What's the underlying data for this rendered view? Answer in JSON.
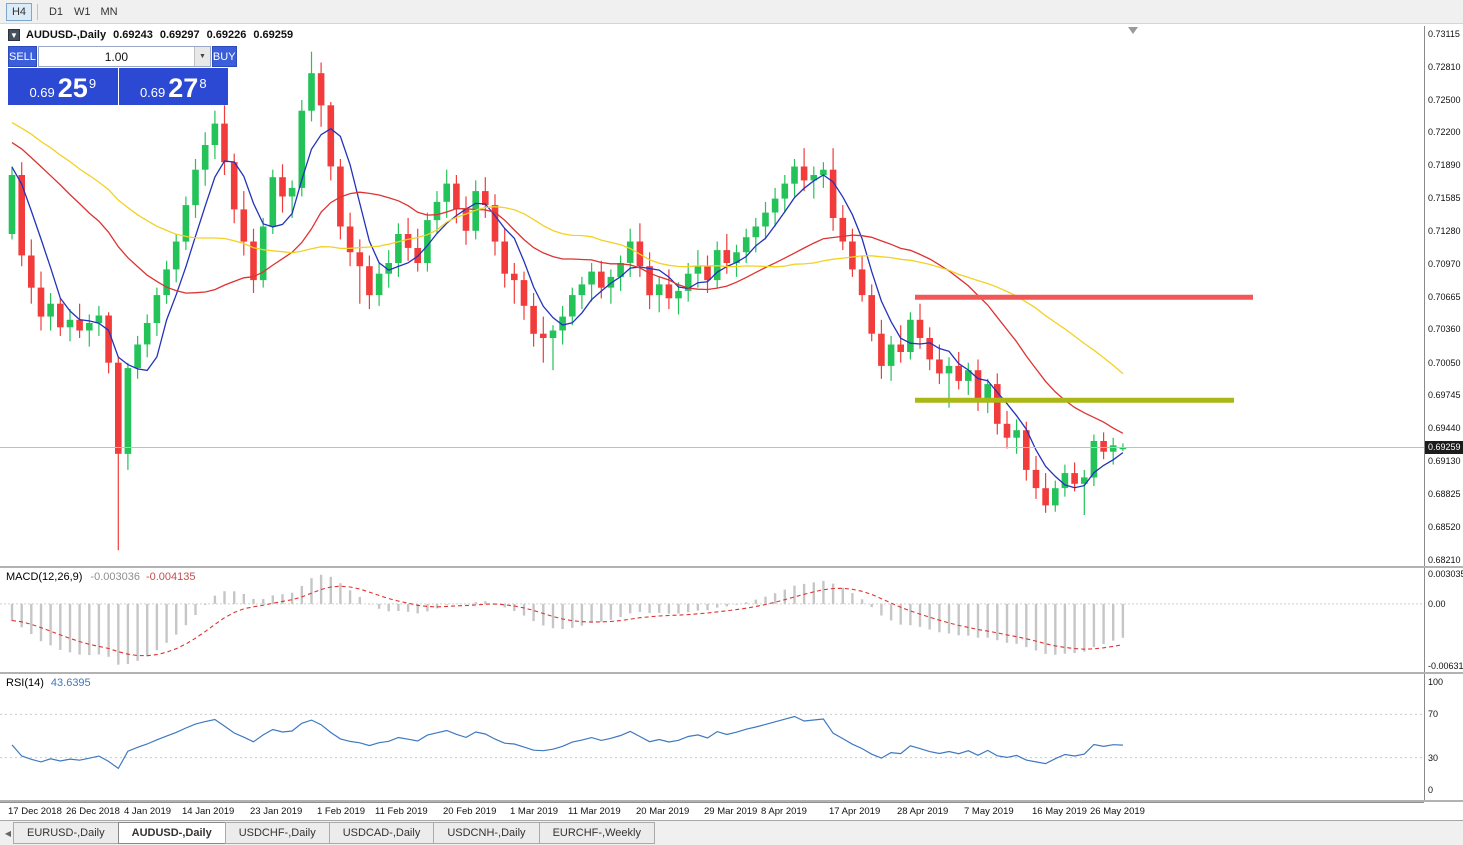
{
  "toolbar": {
    "timeframes": [
      {
        "label": "H4",
        "active": true
      },
      {
        "label": "D1",
        "active": false
      },
      {
        "label": "W1",
        "active": false
      },
      {
        "label": "MN",
        "active": false
      }
    ]
  },
  "chart_header": {
    "symbol": "AUDUSD-,Daily",
    "open": "0.69243",
    "high": "0.69297",
    "low": "0.69226",
    "close": "0.69259"
  },
  "trade_panel": {
    "sell_button": "SELL",
    "buy_button": "BUY",
    "volume": "1.00",
    "sell_price": {
      "big": "0.69",
      "pips": "25",
      "pipette": "9"
    },
    "buy_price": {
      "big": "0.69",
      "pips": "27",
      "pipette": "8"
    }
  },
  "price_scale": {
    "labels": [
      "0.73115",
      "0.72810",
      "0.72500",
      "0.72200",
      "0.71890",
      "0.71585",
      "0.71280",
      "0.70970",
      "0.70665",
      "0.70360",
      "0.70050",
      "0.69745",
      "0.69440",
      "0.69130",
      "0.68825",
      "0.68520",
      "0.68210"
    ],
    "current_price": "0.69259"
  },
  "indicators": {
    "macd": {
      "name": "MACD(12,26,9)",
      "value_main": "-0.003036",
      "value_signal": "-0.004135",
      "scale_labels": [
        "0.003035",
        "0.00",
        "-0.006311"
      ]
    },
    "rsi": {
      "name": "RSI(14)",
      "value": "43.6395",
      "scale_labels": [
        "100",
        "70",
        "30",
        "0"
      ],
      "levels": [
        70,
        30
      ]
    }
  },
  "time_axis": {
    "labels": [
      {
        "text": "17 Dec 2018",
        "idx": 0
      },
      {
        "text": "26 Dec 2018",
        "idx": 6
      },
      {
        "text": "4 Jan 2019",
        "idx": 12
      },
      {
        "text": "14 Jan 2019",
        "idx": 18
      },
      {
        "text": "23 Jan 2019",
        "idx": 25
      },
      {
        "text": "1 Feb 2019",
        "idx": 32
      },
      {
        "text": "11 Feb 2019",
        "idx": 38
      },
      {
        "text": "20 Feb 2019",
        "idx": 45
      },
      {
        "text": "1 Mar 2019",
        "idx": 52
      },
      {
        "text": "11 Mar 2019",
        "idx": 58
      },
      {
        "text": "20 Mar 2019",
        "idx": 65
      },
      {
        "text": "29 Mar 2019",
        "idx": 72
      },
      {
        "text": "8 Apr 2019",
        "idx": 78
      },
      {
        "text": "17 Apr 2019",
        "idx": 85
      },
      {
        "text": "28 Apr 2019",
        "idx": 92
      },
      {
        "text": "7 May 2019",
        "idx": 99
      },
      {
        "text": "16 May 2019",
        "idx": 106
      },
      {
        "text": "26 May 2019",
        "idx": 112
      }
    ]
  },
  "tabs": [
    {
      "label": "EURUSD-,Daily",
      "active": false
    },
    {
      "label": "AUDUSD-,Daily",
      "active": true
    },
    {
      "label": "USDCHF-,Daily",
      "active": false
    },
    {
      "label": "USDCAD-,Daily",
      "active": false
    },
    {
      "label": "USDCNH-,Daily",
      "active": false
    },
    {
      "label": "EURCHF-,Weekly",
      "active": false
    }
  ],
  "chart_data": {
    "type": "candlestick",
    "symbol": "AUDUSD",
    "timeframe": "Daily",
    "price_range": {
      "min": 0.68154,
      "max": 0.7319
    },
    "colors": {
      "bull": "#23c35a",
      "bear": "#f23b3b",
      "ma_fast": "#2233bb",
      "ma_mid": "#dd3333",
      "ma_slow": "#f2d124",
      "macd_hist": "#c6c6c6",
      "macd_signal": "#dd3333",
      "rsi_line": "#3e79c0",
      "resistance": "#f25757",
      "support": "#aab715"
    },
    "moving_averages": [
      {
        "name": "fast",
        "period": 5,
        "color_key": "ma_fast"
      },
      {
        "name": "medium",
        "period": 21,
        "color_key": "ma_mid"
      },
      {
        "name": "slow",
        "period": 34,
        "color_key": "ma_slow"
      }
    ],
    "ma_seed": {
      "start": 0.7295,
      "end": 0.7185,
      "steps": 40
    },
    "hlines": [
      {
        "name": "resistance-line",
        "price": 0.7066,
        "from": 93.5,
        "to": 128.5,
        "width": 5,
        "color_key": "resistance"
      },
      {
        "name": "support-line",
        "price": 0.697,
        "from": 93.5,
        "to": 126.5,
        "width": 5,
        "color_key": "support"
      }
    ],
    "macd": {
      "fast": 12,
      "slow": 26,
      "signal": 9,
      "scale_max": 0.00365,
      "scale_min": -0.00692
    },
    "rsi": {
      "period": 14
    },
    "candles": [
      [
        0.7125,
        0.7188,
        0.712,
        0.718
      ],
      [
        0.718,
        0.7192,
        0.7095,
        0.7105
      ],
      [
        0.7105,
        0.712,
        0.706,
        0.7075
      ],
      [
        0.7075,
        0.709,
        0.7035,
        0.7048
      ],
      [
        0.7048,
        0.707,
        0.7035,
        0.706
      ],
      [
        0.706,
        0.7065,
        0.703,
        0.7038
      ],
      [
        0.7038,
        0.7055,
        0.7025,
        0.7045
      ],
      [
        0.7045,
        0.706,
        0.7028,
        0.7035
      ],
      [
        0.7035,
        0.705,
        0.702,
        0.7042
      ],
      [
        0.7042,
        0.7058,
        0.703,
        0.7049
      ],
      [
        0.7049,
        0.7052,
        0.6995,
        0.7005
      ],
      [
        0.7005,
        0.701,
        0.683,
        0.692
      ],
      [
        0.692,
        0.7005,
        0.6905,
        0.7
      ],
      [
        0.7,
        0.703,
        0.699,
        0.7022
      ],
      [
        0.7022,
        0.705,
        0.701,
        0.7042
      ],
      [
        0.7042,
        0.7075,
        0.703,
        0.7068
      ],
      [
        0.7068,
        0.71,
        0.706,
        0.7092
      ],
      [
        0.7092,
        0.7125,
        0.708,
        0.7118
      ],
      [
        0.7118,
        0.716,
        0.711,
        0.7152
      ],
      [
        0.7152,
        0.7195,
        0.714,
        0.7185
      ],
      [
        0.7185,
        0.722,
        0.717,
        0.7208
      ],
      [
        0.7208,
        0.724,
        0.7195,
        0.7228
      ],
      [
        0.7228,
        0.7245,
        0.718,
        0.7192
      ],
      [
        0.7192,
        0.72,
        0.7135,
        0.7148
      ],
      [
        0.7148,
        0.7165,
        0.7105,
        0.7118
      ],
      [
        0.7118,
        0.713,
        0.707,
        0.7082
      ],
      [
        0.7082,
        0.714,
        0.7075,
        0.7132
      ],
      [
        0.7132,
        0.7185,
        0.7125,
        0.7178
      ],
      [
        0.7178,
        0.719,
        0.7145,
        0.716
      ],
      [
        0.716,
        0.7175,
        0.714,
        0.7168
      ],
      [
        0.7168,
        0.725,
        0.716,
        0.724
      ],
      [
        0.724,
        0.7295,
        0.723,
        0.7275
      ],
      [
        0.7275,
        0.7285,
        0.7225,
        0.7245
      ],
      [
        0.7245,
        0.7248,
        0.7175,
        0.7188
      ],
      [
        0.7188,
        0.7195,
        0.712,
        0.7132
      ],
      [
        0.7132,
        0.7145,
        0.7095,
        0.7108
      ],
      [
        0.7108,
        0.712,
        0.706,
        0.7095
      ],
      [
        0.7095,
        0.7105,
        0.7055,
        0.7068
      ],
      [
        0.7068,
        0.7098,
        0.7058,
        0.7088
      ],
      [
        0.7088,
        0.711,
        0.7075,
        0.7098
      ],
      [
        0.7098,
        0.7135,
        0.7085,
        0.7125
      ],
      [
        0.7125,
        0.714,
        0.71,
        0.7112
      ],
      [
        0.7112,
        0.713,
        0.709,
        0.7098
      ],
      [
        0.7098,
        0.7145,
        0.709,
        0.7138
      ],
      [
        0.7138,
        0.7165,
        0.7125,
        0.7155
      ],
      [
        0.7155,
        0.7185,
        0.714,
        0.7172
      ],
      [
        0.7172,
        0.718,
        0.7135,
        0.7148
      ],
      [
        0.7148,
        0.716,
        0.7115,
        0.7128
      ],
      [
        0.7128,
        0.7175,
        0.712,
        0.7165
      ],
      [
        0.7165,
        0.7178,
        0.714,
        0.7152
      ],
      [
        0.7152,
        0.7162,
        0.7105,
        0.7118
      ],
      [
        0.7118,
        0.713,
        0.7075,
        0.7088
      ],
      [
        0.7088,
        0.7098,
        0.706,
        0.7082
      ],
      [
        0.7082,
        0.709,
        0.7045,
        0.7058
      ],
      [
        0.7058,
        0.707,
        0.702,
        0.7032
      ],
      [
        0.7032,
        0.7048,
        0.7005,
        0.7028
      ],
      [
        0.7028,
        0.704,
        0.6998,
        0.7035
      ],
      [
        0.7035,
        0.7058,
        0.7022,
        0.7048
      ],
      [
        0.7048,
        0.7075,
        0.704,
        0.7068
      ],
      [
        0.7068,
        0.7085,
        0.7055,
        0.7078
      ],
      [
        0.7078,
        0.7098,
        0.7062,
        0.709
      ],
      [
        0.709,
        0.71,
        0.7065,
        0.7075
      ],
      [
        0.7075,
        0.7092,
        0.706,
        0.7085
      ],
      [
        0.7085,
        0.7105,
        0.7072,
        0.7098
      ],
      [
        0.7098,
        0.713,
        0.7085,
        0.7118
      ],
      [
        0.7118,
        0.7135,
        0.7085,
        0.7095
      ],
      [
        0.7095,
        0.7108,
        0.7055,
        0.7068
      ],
      [
        0.7068,
        0.7085,
        0.7052,
        0.7078
      ],
      [
        0.7078,
        0.7092,
        0.7055,
        0.7065
      ],
      [
        0.7065,
        0.708,
        0.705,
        0.7072
      ],
      [
        0.7072,
        0.7098,
        0.7062,
        0.7088
      ],
      [
        0.7088,
        0.711,
        0.7075,
        0.7095
      ],
      [
        0.7095,
        0.7105,
        0.707,
        0.7082
      ],
      [
        0.7082,
        0.7118,
        0.7075,
        0.711
      ],
      [
        0.711,
        0.7125,
        0.7088,
        0.7098
      ],
      [
        0.7098,
        0.7115,
        0.7085,
        0.7108
      ],
      [
        0.7108,
        0.713,
        0.7098,
        0.7122
      ],
      [
        0.7122,
        0.714,
        0.7108,
        0.7132
      ],
      [
        0.7132,
        0.7155,
        0.712,
        0.7145
      ],
      [
        0.7145,
        0.7168,
        0.7132,
        0.7158
      ],
      [
        0.7158,
        0.718,
        0.7145,
        0.7172
      ],
      [
        0.7172,
        0.7195,
        0.716,
        0.7188
      ],
      [
        0.7188,
        0.7205,
        0.7165,
        0.7175
      ],
      [
        0.7175,
        0.7188,
        0.7158,
        0.718
      ],
      [
        0.718,
        0.7192,
        0.7168,
        0.7185
      ],
      [
        0.7185,
        0.7205,
        0.7128,
        0.714
      ],
      [
        0.714,
        0.7152,
        0.711,
        0.7118
      ],
      [
        0.7118,
        0.713,
        0.7085,
        0.7092
      ],
      [
        0.7092,
        0.7105,
        0.7062,
        0.7068
      ],
      [
        0.7068,
        0.7078,
        0.7025,
        0.7032
      ],
      [
        0.7032,
        0.7045,
        0.699,
        0.7002
      ],
      [
        0.7002,
        0.703,
        0.6988,
        0.7022
      ],
      [
        0.7022,
        0.704,
        0.7005,
        0.7015
      ],
      [
        0.7015,
        0.7052,
        0.7008,
        0.7045
      ],
      [
        0.7045,
        0.706,
        0.7018,
        0.7028
      ],
      [
        0.7028,
        0.7038,
        0.6998,
        0.7008
      ],
      [
        0.7008,
        0.7022,
        0.6985,
        0.6995
      ],
      [
        0.6995,
        0.701,
        0.6963,
        0.7002
      ],
      [
        0.7002,
        0.7015,
        0.698,
        0.6988
      ],
      [
        0.6988,
        0.7005,
        0.6975,
        0.6998
      ],
      [
        0.6998,
        0.7008,
        0.696,
        0.6968
      ],
      [
        0.6968,
        0.699,
        0.6958,
        0.6985
      ],
      [
        0.6985,
        0.6995,
        0.6938,
        0.6948
      ],
      [
        0.6948,
        0.696,
        0.6925,
        0.6935
      ],
      [
        0.6935,
        0.6952,
        0.692,
        0.6942
      ],
      [
        0.6942,
        0.695,
        0.6895,
        0.6905
      ],
      [
        0.6905,
        0.6918,
        0.6878,
        0.6888
      ],
      [
        0.6888,
        0.6902,
        0.6865,
        0.6872
      ],
      [
        0.6872,
        0.6895,
        0.6866,
        0.6888
      ],
      [
        0.6888,
        0.691,
        0.688,
        0.6902
      ],
      [
        0.6902,
        0.6912,
        0.6885,
        0.6892
      ],
      [
        0.6892,
        0.6905,
        0.6863,
        0.6898
      ],
      [
        0.6898,
        0.6938,
        0.689,
        0.6932
      ],
      [
        0.6932,
        0.694,
        0.6915,
        0.6922
      ],
      [
        0.6922,
        0.6935,
        0.691,
        0.6928
      ],
      [
        0.69243,
        0.69297,
        0.69226,
        0.69259
      ]
    ]
  }
}
